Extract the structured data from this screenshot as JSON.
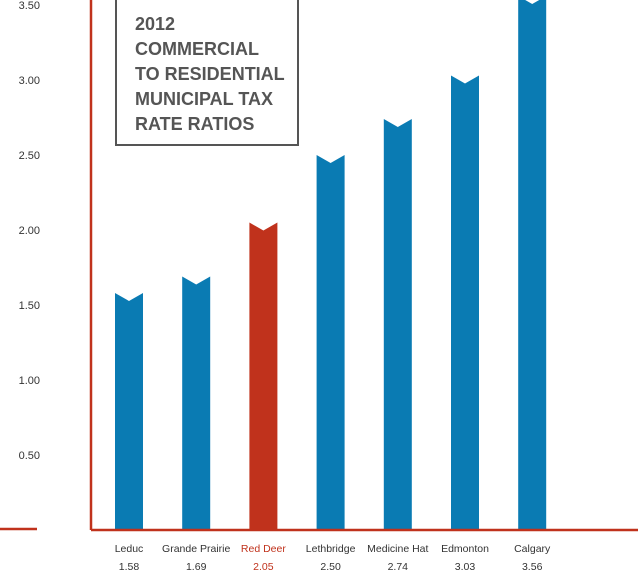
{
  "chart_data": {
    "type": "bar",
    "title": "2012 COMMERCIAL TO RESIDENTIAL MUNICIPAL TAX RATE RATIOS",
    "categories": [
      "Leduc",
      "Grande Prairie",
      "Red Deer",
      "Lethbridge",
      "Medicine Hat",
      "Edmonton",
      "Calgary"
    ],
    "value_labels": [
      "1.58",
      "1.69",
      "2.05",
      "2.50",
      "2.74",
      "3.03",
      "3.56"
    ],
    "values": [
      1.58,
      1.69,
      2.05,
      2.5,
      2.74,
      3.03,
      3.56
    ],
    "highlight": "Red Deer",
    "yticks": [
      "0.50",
      "1.00",
      "1.50",
      "2.00",
      "2.50",
      "3.00",
      "3.50"
    ],
    "ytick_values": [
      0.5,
      1.0,
      1.5,
      2.0,
      2.5,
      3.0,
      3.5
    ],
    "ylim": [
      0,
      3.56
    ],
    "grid": false,
    "xlabel": "",
    "ylabel": ""
  },
  "colors": {
    "bar": "#0a7bb3",
    "highlight": "#c0321c",
    "axis": "#c0321c",
    "title_border": "#555555",
    "text": "#333333"
  }
}
